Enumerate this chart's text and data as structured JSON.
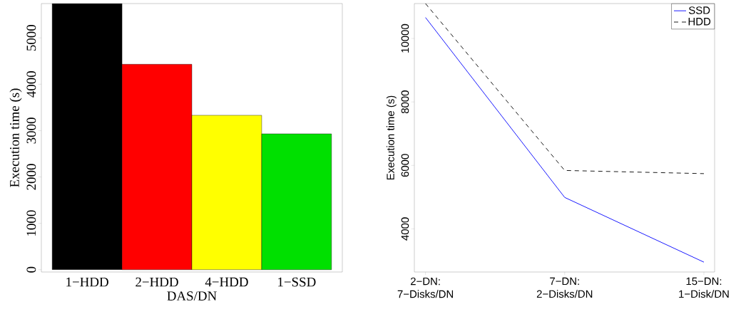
{
  "chart_data": [
    {
      "type": "bar",
      "xlabel": "DAS/DN",
      "ylabel": "Execution time (s)",
      "categories": [
        "1−HDD",
        "2−HDD",
        "4−HDD",
        "1−SSD"
      ],
      "values": [
        5740,
        4430,
        3330,
        2930
      ],
      "colors": [
        "#000000",
        "#ff0000",
        "#ffff00",
        "#00e000"
      ],
      "ylim": [
        -50,
        5740
      ],
      "yticks": [
        0,
        1000,
        2000,
        3000,
        4000,
        5000
      ]
    },
    {
      "type": "line",
      "ylabel": "Execution time (s)",
      "categories": [
        "2−DN: 7−Disks/DN",
        "7−DN: 2−Disks/DN",
        "15−DN: 1−Disk/DN"
      ],
      "series": [
        {
          "name": "SSD",
          "color": "#0000ff",
          "values": [
            10660,
            4990,
            2950
          ],
          "line_style": "solid"
        },
        {
          "name": "HDD",
          "color": "#000000",
          "values": [
            11100,
            5840,
            5740
          ],
          "line_style": "dashed"
        }
      ],
      "ylim": [
        2640,
        11100
      ],
      "yticks": [
        4000,
        6000,
        8000,
        10000
      ],
      "legend": "top right",
      "marker": "none"
    }
  ]
}
